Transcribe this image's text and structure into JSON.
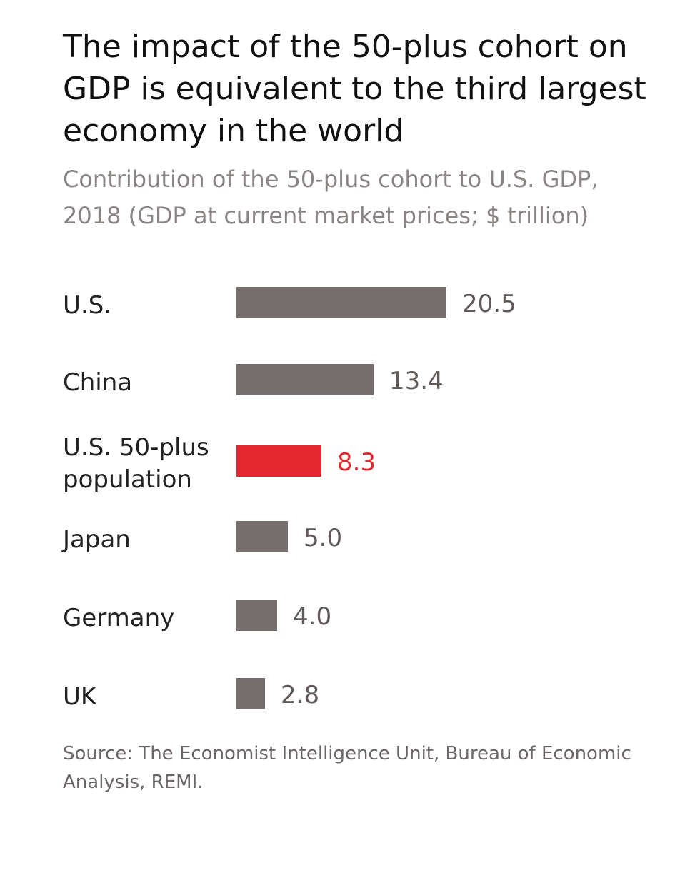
{
  "title": "The impact of the 50-plus cohort on GDP is equivalent to the third largest economy in the world",
  "subtitle": "Contribution of the 50-plus cohort to U.S. GDP, 2018 (GDP at current market prices; $ trillion)",
  "source": "Source: The Economist Intelligence Unit, Bureau of Economic Analysis, REMI.",
  "colors": {
    "default_bar": "#766f6d",
    "highlight_bar": "#e3282f",
    "default_value": "#5f5957",
    "highlight_value": "#e3282f"
  },
  "chart_data": {
    "type": "bar",
    "orientation": "horizontal",
    "title": "The impact of the 50-plus cohort on GDP is equivalent to the third largest economy in the world",
    "subtitle": "Contribution of the 50-plus cohort to U.S. GDP, 2018 (GDP at current market prices; $ trillion)",
    "xlabel": "",
    "ylabel": "",
    "unit": "$ trillion",
    "grid": false,
    "xlim": [
      0,
      20.5
    ],
    "categories": [
      "U.S.",
      "China",
      "U.S. 50-plus population",
      "Japan",
      "Germany",
      "UK"
    ],
    "category_lines": [
      [
        "U.S."
      ],
      [
        "China"
      ],
      [
        "U.S. 50-plus",
        "population"
      ],
      [
        "Japan"
      ],
      [
        "Germany"
      ],
      [
        "UK"
      ]
    ],
    "values": [
      20.5,
      13.4,
      8.3,
      5.0,
      4.0,
      2.8
    ],
    "value_labels": [
      "20.5",
      "13.4",
      "8.3",
      "5.0",
      "4.0",
      "2.8"
    ],
    "highlight": [
      false,
      false,
      true,
      false,
      false,
      false
    ]
  }
}
